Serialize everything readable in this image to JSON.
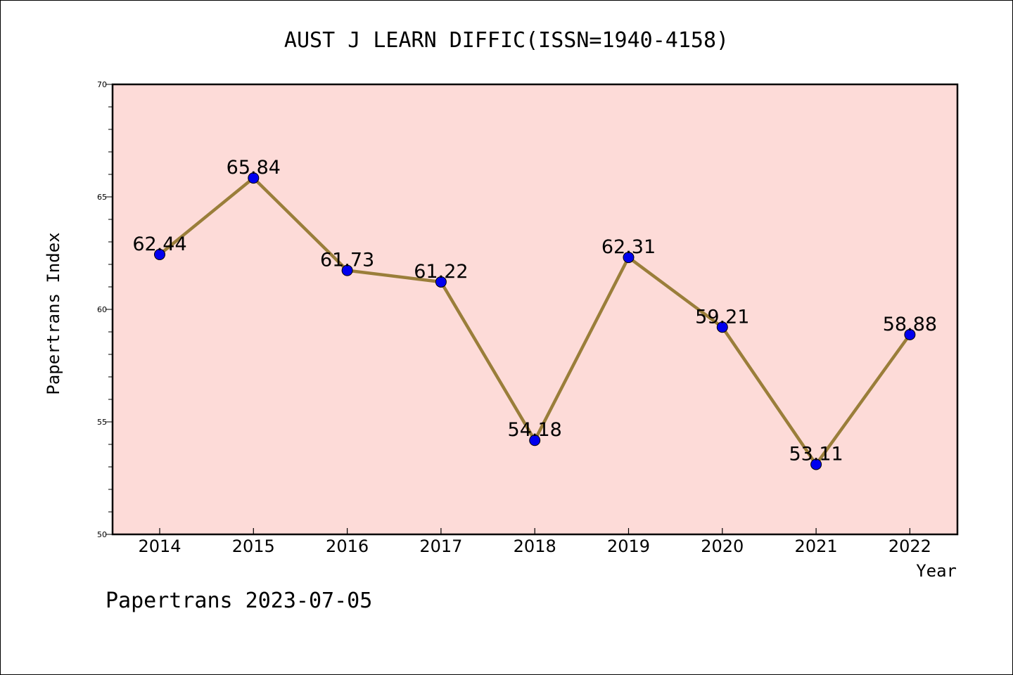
{
  "chart_data": {
    "type": "line",
    "title": "AUST J LEARN DIFFIC(ISSN=1940-4158)",
    "xlabel": "Year",
    "ylabel": "Papertrans Index",
    "x": [
      "2014",
      "2015",
      "2016",
      "2017",
      "2018",
      "2019",
      "2020",
      "2021",
      "2022"
    ],
    "series": [
      {
        "values": [
          62.44,
          65.84,
          61.73,
          61.22,
          54.18,
          62.31,
          59.21,
          53.11,
          58.88
        ],
        "labels": [
          "62.44",
          "65.84",
          "61.73",
          "61.22",
          "54.18",
          "62.31",
          "59.21",
          "53.11",
          "58.88"
        ]
      }
    ],
    "ylim": [
      50,
      70
    ],
    "y_ticks": [
      "50",
      "55",
      "60",
      "65",
      "70"
    ],
    "grid": false,
    "footer": "Papertrans 2023-07-05",
    "colors": {
      "plot_background": "#fddbd8",
      "line": "#9a7e3a",
      "marker": "#0000ee"
    }
  }
}
